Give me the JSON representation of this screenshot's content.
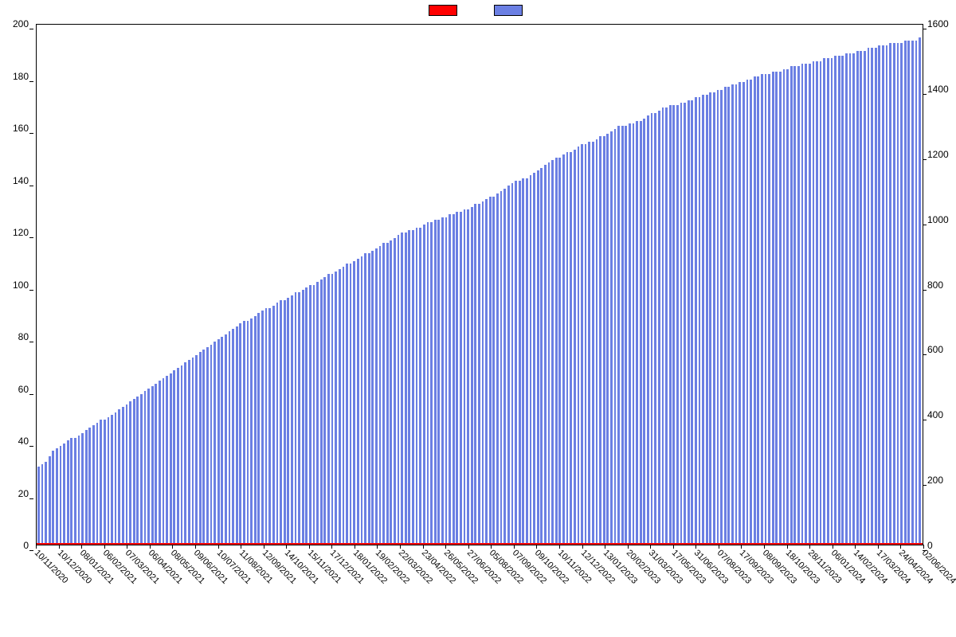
{
  "chart": {
    "type": "bar-dual-axis-with-line",
    "background_color": "#ffffff",
    "plot_border_color": "#000000",
    "font_family": "Arial",
    "tick_fontsize": 12,
    "xlabel_fontsize": 11,
    "bar_color": "#6b7fe3",
    "line_color": "#ff0000",
    "line_width": 2,
    "legend": {
      "position": "top-center",
      "items": [
        {
          "label": "",
          "color": "#ff0000"
        },
        {
          "label": "",
          "color": "#6b7fe3"
        }
      ]
    },
    "y_left": {
      "lim": [
        0,
        200
      ],
      "tick_step": 20,
      "ticks": [
        0,
        20,
        40,
        60,
        80,
        100,
        120,
        140,
        160,
        180,
        200
      ]
    },
    "y_right": {
      "lim": [
        0,
        1600
      ],
      "tick_step": 200,
      "ticks": [
        0,
        200,
        400,
        600,
        800,
        1000,
        1200,
        1400,
        1600
      ]
    },
    "x_tick_labels": [
      "10/11/2020",
      "10/12/2020",
      "08/01/2021",
      "06/02/2021",
      "07/03/2021",
      "06/04/2021",
      "08/05/2021",
      "09/06/2021",
      "10/07/2021",
      "11/08/2021",
      "12/09/2021",
      "14/10/2021",
      "15/11/2021",
      "17/12/2021",
      "18/01/2022",
      "19/02/2022",
      "22/03/2022",
      "23/04/2022",
      "26/05/2022",
      "27/06/2022",
      "05/08/2022",
      "07/09/2022",
      "09/10/2022",
      "10/11/2022",
      "12/12/2022",
      "13/01/2023",
      "20/02/2023",
      "31/03/2023",
      "17/05/2023",
      "31/06/2023",
      "07/08/2023",
      "17/09/2023",
      "08/09/2023",
      "18/10/2023",
      "28/11/2023",
      "06/01/2024",
      "14/02/2024",
      "17/03/2024",
      "24/04/2024",
      "02/06/2024"
    ],
    "x_tick_rotation_deg": 45,
    "bars_on_right_axis": false,
    "bars_left_axis_values": [
      30,
      31,
      32,
      34,
      36,
      37,
      38,
      39,
      40,
      41,
      41,
      42,
      43,
      44,
      45,
      46,
      47,
      48,
      48,
      49,
      50,
      51,
      52,
      53,
      54,
      55,
      56,
      57,
      58,
      59,
      60,
      61,
      62,
      63,
      64,
      65,
      66,
      67,
      68,
      69,
      70,
      71,
      72,
      73,
      74,
      75,
      76,
      77,
      78,
      79,
      80,
      81,
      82,
      83,
      84,
      85,
      86,
      86,
      87,
      88,
      89,
      90,
      91,
      91,
      92,
      93,
      94,
      94,
      95,
      96,
      97,
      97,
      98,
      99,
      100,
      100,
      101,
      102,
      103,
      104,
      104,
      105,
      106,
      107,
      108,
      108,
      109,
      110,
      111,
      112,
      112,
      113,
      114,
      115,
      116,
      116,
      117,
      118,
      119,
      120,
      120,
      121,
      121,
      122,
      122,
      123,
      124,
      124,
      125,
      125,
      126,
      126,
      127,
      127,
      128,
      128,
      129,
      129,
      130,
      131,
      131,
      132,
      133,
      134,
      134,
      135,
      136,
      137,
      138,
      139,
      140,
      140,
      141,
      141,
      142,
      143,
      144,
      145,
      146,
      147,
      148,
      149,
      149,
      150,
      151,
      151,
      152,
      153,
      154,
      154,
      155,
      155,
      156,
      157,
      157,
      158,
      159,
      160,
      161,
      161,
      161,
      162,
      162,
      163,
      163,
      164,
      165,
      166,
      166,
      167,
      168,
      168,
      169,
      169,
      169,
      170,
      170,
      171,
      171,
      172,
      172,
      173,
      173,
      174,
      174,
      175,
      175,
      176,
      176,
      177,
      177,
      178,
      178,
      179,
      179,
      180,
      180,
      181,
      181,
      181,
      182,
      182,
      182,
      183,
      183,
      184,
      184,
      184,
      185,
      185,
      185,
      186,
      186,
      186,
      187,
      187,
      187,
      188,
      188,
      188,
      189,
      189,
      189,
      190,
      190,
      190,
      191,
      191,
      191,
      192,
      192,
      192,
      193,
      193,
      193,
      193,
      194,
      194,
      194,
      194,
      195
    ],
    "line_left_axis_value_constant": 0
  }
}
